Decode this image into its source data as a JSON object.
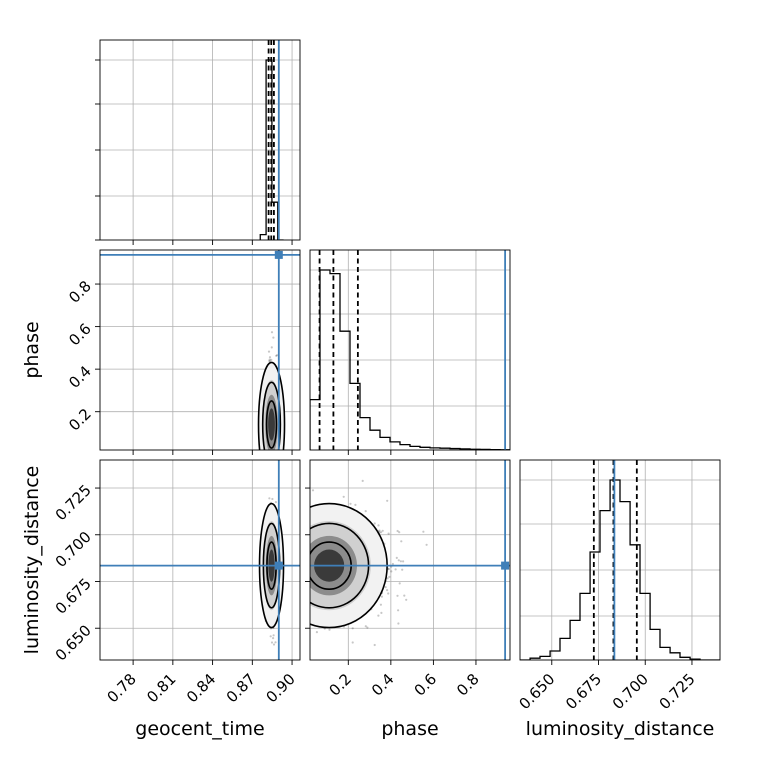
{
  "chart_data": {
    "type": "corner",
    "parameters": [
      "geocent_time",
      "phase",
      "luminosity_distance"
    ],
    "axis_labels": {
      "x": [
        "geocent_time",
        "phase",
        "luminosity_distance"
      ],
      "y": [
        "phase",
        "luminosity_distance"
      ]
    },
    "ranges": {
      "geocent_time": [
        0.755,
        0.906
      ],
      "phase": [
        0.02,
        0.96
      ],
      "luminosity_distance": [
        0.633,
        0.74
      ]
    },
    "ticks": {
      "geocent_time": [
        0.78,
        0.81,
        0.84,
        0.87,
        0.9
      ],
      "phase": [
        0.2,
        0.4,
        0.6,
        0.8
      ],
      "luminosity_distance": [
        0.65,
        0.675,
        0.7,
        0.725
      ]
    },
    "tick_labels": {
      "geocent_time": [
        "0.78",
        "0.81",
        "0.84",
        "0.87",
        "0.90"
      ],
      "phase": [
        "0.2",
        "0.4",
        "0.6",
        "0.8"
      ],
      "luminosity_distance": [
        "0.650",
        "0.675",
        "0.700",
        "0.725"
      ]
    },
    "injection": {
      "geocent_time": 0.89,
      "phase": 0.937,
      "luminosity_distance": 0.6835
    },
    "quantiles": {
      "geocent_time": [
        0.8823,
        0.8843,
        0.8863
      ],
      "phase": [
        0.065,
        0.13,
        0.245
      ],
      "luminosity_distance": [
        0.6725,
        0.683,
        0.6955
      ]
    },
    "histograms": {
      "geocent_time": {
        "edges": [
          0.876,
          0.8804,
          0.8848,
          0.8892,
          0.8936
        ],
        "counts": [
          0.03,
          1.0,
          0.21,
          0.0
        ]
      },
      "phase": {
        "edges": [
          0.02,
          0.067,
          0.114,
          0.161,
          0.208,
          0.255,
          0.302,
          0.349,
          0.396,
          0.443,
          0.49,
          0.537,
          0.584,
          0.631,
          0.678,
          0.725,
          0.772,
          0.819,
          0.866,
          0.913,
          0.96
        ],
        "counts": [
          0.28,
          1.0,
          0.98,
          0.66,
          0.37,
          0.18,
          0.11,
          0.07,
          0.045,
          0.03,
          0.02,
          0.015,
          0.012,
          0.01,
          0.008,
          0.006,
          0.004,
          0.003,
          0.002,
          0.001
        ]
      },
      "luminosity_distance": {
        "edges": [
          0.633,
          0.6384,
          0.6437,
          0.6491,
          0.6544,
          0.6598,
          0.6651,
          0.6705,
          0.6758,
          0.6812,
          0.6865,
          0.6919,
          0.6972,
          0.7026,
          0.7079,
          0.7133,
          0.7186,
          0.724,
          0.7293,
          0.7347,
          0.74
        ],
        "counts": [
          0.0,
          0.01,
          0.02,
          0.05,
          0.12,
          0.22,
          0.37,
          0.6,
          0.83,
          1.0,
          0.88,
          0.64,
          0.37,
          0.17,
          0.07,
          0.04,
          0.015,
          0.005,
          0.0,
          0.0
        ]
      }
    },
    "colors": {
      "injection": "#3f7fb8",
      "data": "#000000",
      "grid": "#b0b0b0"
    },
    "grid": true
  }
}
